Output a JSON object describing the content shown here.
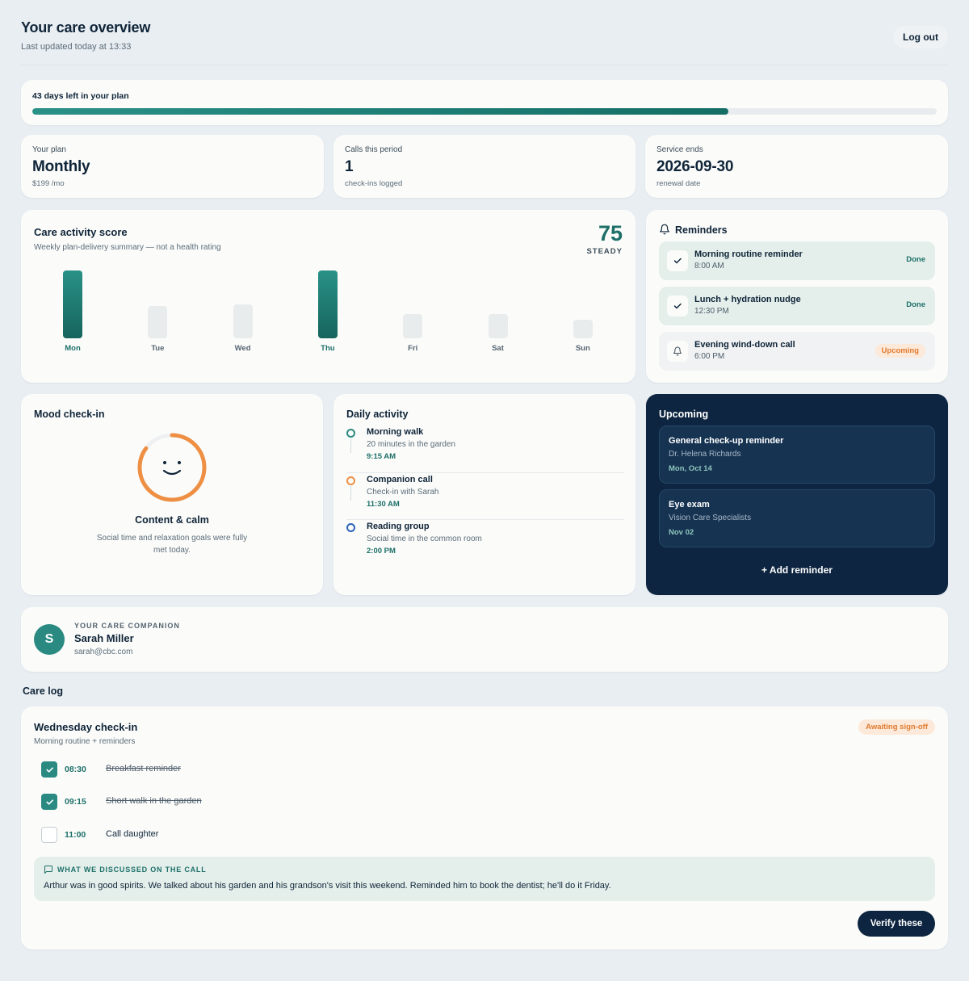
{
  "header": {
    "title": "Your care overview",
    "subtitle": "Last updated today at 13:33",
    "logout_label": "Log out"
  },
  "plan_progress": {
    "label": "43 days left in your plan",
    "fill_fraction": 0.77,
    "color": "#1d7c73"
  },
  "stats": [
    {
      "label": "Your plan",
      "value": "Monthly",
      "sub": "$199 /mo"
    },
    {
      "label": "Calls this period",
      "value": "1",
      "sub": "check-ins logged"
    },
    {
      "label": "Service ends",
      "value": "2026-09-30",
      "sub": "renewal date"
    }
  ],
  "activity_score": {
    "title": "Care activity score",
    "subtitle": "Weekly plan-delivery summary — not a health rating",
    "score": "75",
    "tag": "STEADY"
  },
  "chart_data": {
    "type": "bar",
    "categories": [
      "Mon",
      "Tue",
      "Wed",
      "Thu",
      "Fri",
      "Sat",
      "Sun"
    ],
    "values": [
      100,
      48,
      50,
      100,
      36,
      36,
      27
    ],
    "highlighted": [
      "Mon",
      "Thu"
    ],
    "ylim": [
      0,
      100
    ],
    "grid": false,
    "colors": {
      "highlight": "#1d7c73",
      "muted": "#e9eced"
    }
  },
  "reminders": {
    "title": "Reminders",
    "items": [
      {
        "name": "Morning routine reminder",
        "time": "8:00 AM",
        "status": "Done",
        "icon": "check-icon"
      },
      {
        "name": "Lunch + hydration nudge",
        "time": "12:30 PM",
        "status": "Done",
        "icon": "check-icon"
      },
      {
        "name": "Evening wind-down call",
        "time": "6:00 PM",
        "status": "Upcoming",
        "icon": "bell-icon"
      }
    ]
  },
  "mood": {
    "title": "Mood check-in",
    "state": "Content & calm",
    "description": "Social time and relaxation goals were fully met today.",
    "ring_fraction": 0.85,
    "icon": "smiley-icon",
    "color": "#ee8f44"
  },
  "daily_activity": {
    "title": "Daily activity",
    "items": [
      {
        "name": "Morning walk",
        "desc": "20 minutes in the garden",
        "time": "9:15 AM",
        "color": "#2a8a82"
      },
      {
        "name": "Companion call",
        "desc": "Check-in with Sarah",
        "time": "11:30 AM",
        "color": "#ee8f44"
      },
      {
        "name": "Reading group",
        "desc": "Social time in the common room",
        "time": "2:00 PM",
        "color": "#2e63b8"
      }
    ]
  },
  "upcoming": {
    "title": "Upcoming",
    "items": [
      {
        "name": "General check-up reminder",
        "provider": "Dr. Helena Richards",
        "date": "Mon, Oct 14"
      },
      {
        "name": "Eye exam",
        "provider": "Vision Care Specialists",
        "date": "Nov 02"
      }
    ],
    "add_label": "+ Add reminder"
  },
  "companion": {
    "initial": "S",
    "kicker": "YOUR CARE COMPANION",
    "name": "Sarah Miller",
    "email": "sarah@cbc.com"
  },
  "care_log_section": "Care log",
  "care_log": {
    "title": "Wednesday check-in",
    "subtitle": "Morning routine + reminders",
    "status": "Awaiting sign-off",
    "tasks": [
      {
        "time": "08:30",
        "text": "Breakfast reminder",
        "checked": true
      },
      {
        "time": "09:15",
        "text": "Short walk in the garden",
        "checked": true
      },
      {
        "time": "11:00",
        "text": "Call daughter",
        "checked": false
      }
    ],
    "note_kicker": "WHAT WE DISCUSSED ON THE CALL",
    "note_text": "Arthur was in good spirits. We talked about his garden and his grandson's visit this weekend. Reminded him to book the dentist; he'll do it Friday.",
    "verify_label": "Verify these"
  }
}
